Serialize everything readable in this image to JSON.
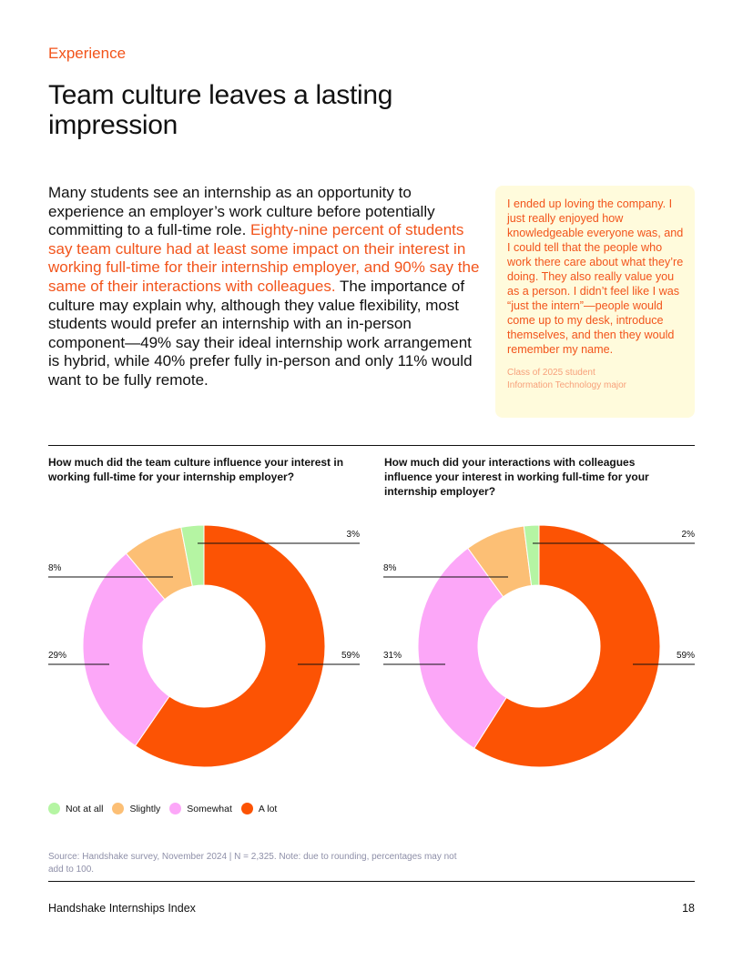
{
  "section_label": "Experience",
  "page_title": "Team culture leaves a lasting impression",
  "body": {
    "part1": "Many students see an internship as an opportunity to experience an employer’s work culture before potentially committing to a full-time role.",
    "highlight": "Eighty-nine percent of students say team culture had at least some impact on their interest in working full-time for their internship employer, and 90% say the same of their interactions with colleagues.",
    "part2": "The importance of culture may explain why, although they value flexibility, most students would prefer an internship with an in-person component—49% say their ideal internship work arrangement is hybrid, while 40% prefer fully in-person and only 11% would want to be fully remote."
  },
  "quote": {
    "text": "I ended up loving the company. I just really enjoyed how knowledgeable everyone was, and I could tell that the people who work there care about what they’re doing. They also really value you as a person. I didn’t feel like I was “just the intern”—people would come up to my desk, introduce themselves, and then they would remember my name.",
    "attribution_line1": "Class of 2025 student",
    "attribution_line2": "Information Technology major"
  },
  "colors": {
    "accent": "#f2541b",
    "not_at_all": "#b5f5a3",
    "slightly": "#fcbf75",
    "somewhat": "#fca7f8",
    "a_lot": "#fc5304"
  },
  "chart_data": [
    {
      "type": "pie",
      "title": "How much did the team culture influence your interest in working full-time for your internship employer?",
      "categories": [
        "Not at all",
        "Slightly",
        "Somewhat",
        "A lot"
      ],
      "values": [
        3,
        8,
        29,
        59
      ],
      "labels": [
        "3%",
        "8%",
        "29%",
        "59%"
      ]
    },
    {
      "type": "pie",
      "title": "How much did your interactions with colleagues influence your interest in working full-time for your internship employer?",
      "categories": [
        "Not at all",
        "Slightly",
        "Somewhat",
        "A lot"
      ],
      "values": [
        2,
        8,
        31,
        59
      ],
      "labels": [
        "2%",
        "8%",
        "31%",
        "59%"
      ]
    }
  ],
  "legend": [
    "Not at all",
    "Slightly",
    "Somewhat",
    "A lot"
  ],
  "source": "Source: Handshake survey, November 2024 | N = 2,325. Note: due to rounding, percentages may not add to 100.",
  "footer": {
    "left": "Handshake Internships Index",
    "page_number": "18"
  }
}
